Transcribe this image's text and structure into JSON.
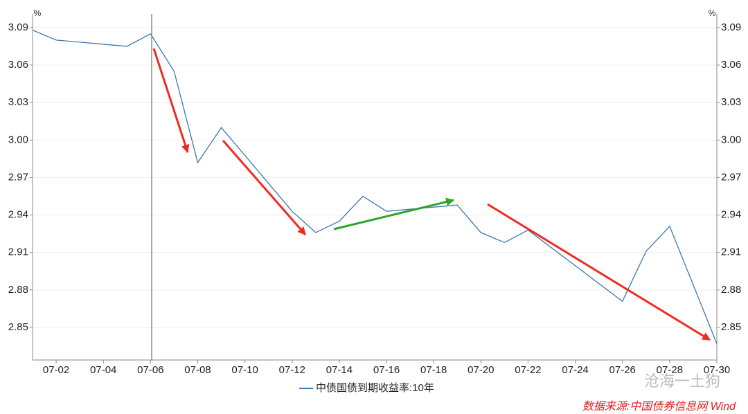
{
  "chart_data": {
    "type": "line",
    "unit_left": "%",
    "unit_right": "%",
    "x": [
      "07-01",
      "07-02",
      "07-05",
      "07-06",
      "07-07",
      "07-08",
      "07-09",
      "07-12",
      "07-13",
      "07-14",
      "07-15",
      "07-16",
      "07-19",
      "07-20",
      "07-21",
      "07-22",
      "07-26",
      "07-27",
      "07-28",
      "07-30"
    ],
    "series": [
      {
        "name": "中债国债到期收益率:10年",
        "color": "#3a78b0",
        "values": [
          3.088,
          3.08,
          3.075,
          3.085,
          3.055,
          2.982,
          3.01,
          2.943,
          2.926,
          2.935,
          2.955,
          2.943,
          2.948,
          2.926,
          2.918,
          2.928,
          2.871,
          2.911,
          2.931,
          2.837
        ]
      }
    ],
    "xlim": [
      "07-01",
      "07-30"
    ],
    "xticks": [
      "07-02",
      "07-04",
      "07-06",
      "07-08",
      "07-10",
      "07-12",
      "07-14",
      "07-16",
      "07-18",
      "07-20",
      "07-22",
      "07-24",
      "07-26",
      "07-28",
      "07-30"
    ],
    "ylim": [
      2.824,
      3.101
    ],
    "yticks": [
      {
        "value": 2.85,
        "label": "2.85"
      },
      {
        "value": 2.88,
        "label": "2.88"
      },
      {
        "value": 2.91,
        "label": "2.91"
      },
      {
        "value": 2.94,
        "label": "2.94"
      },
      {
        "value": 2.97,
        "label": "2.97"
      },
      {
        "value": 3.0,
        "label": "3.00"
      },
      {
        "value": 3.03,
        "label": "3.03"
      },
      {
        "value": 3.06,
        "label": "3.06"
      },
      {
        "value": 3.09,
        "label": "3.09"
      }
    ],
    "grid": true,
    "source": "数据来源:中国债券信息网 Wind",
    "watermark": "沧海一土狗"
  }
}
